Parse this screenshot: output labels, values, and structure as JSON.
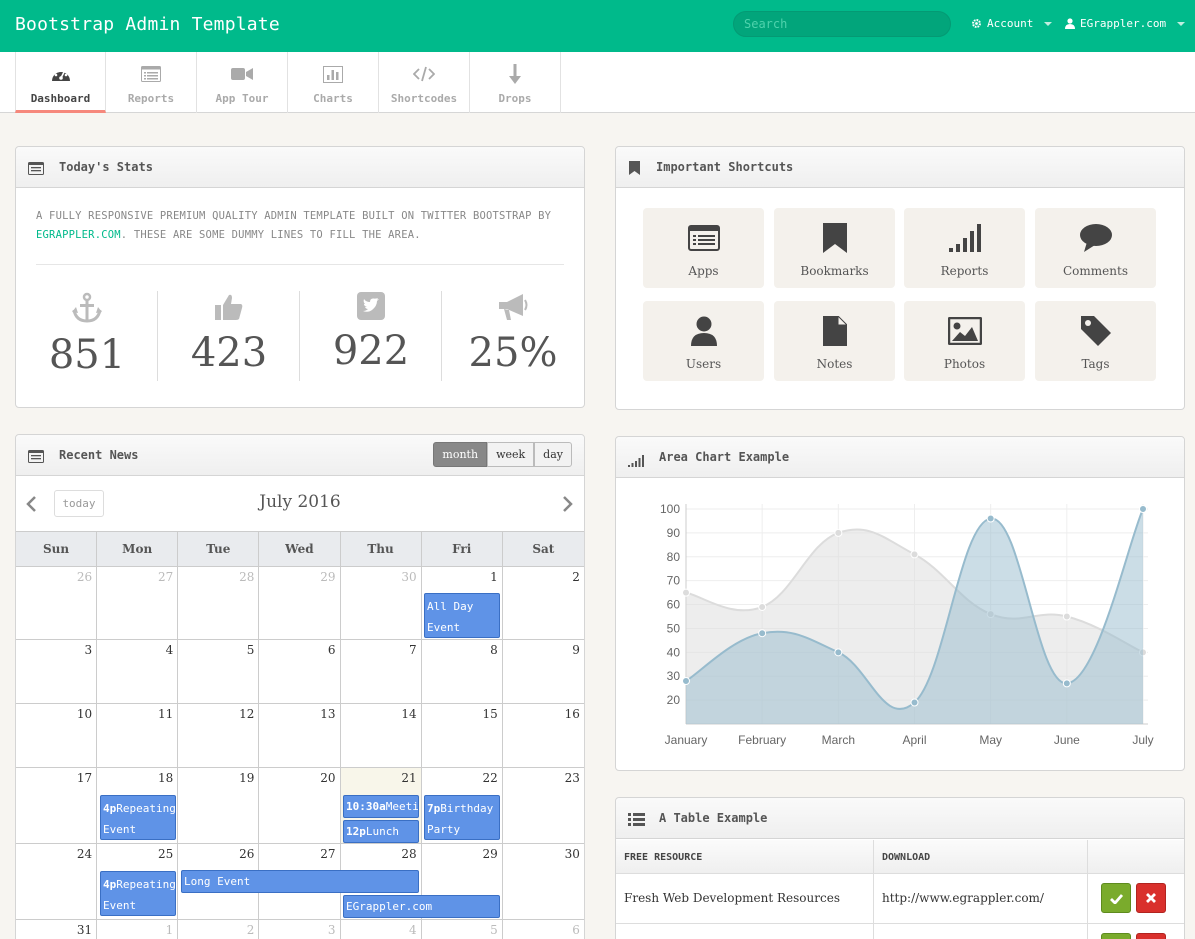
{
  "topbar": {
    "brand": "Bootstrap Admin Template",
    "search_placeholder": "Search",
    "account_label": "Account",
    "user_label": "EGrappler.com"
  },
  "tabs": [
    {
      "label": "Dashboard",
      "icon": "dashboard-icon",
      "active": true
    },
    {
      "label": "Reports",
      "icon": "list-icon"
    },
    {
      "label": "App Tour",
      "icon": "video-camera-icon"
    },
    {
      "label": "Charts",
      "icon": "bar-chart-icon"
    },
    {
      "label": "Shortcodes",
      "icon": "code-icon"
    },
    {
      "label": "Drops",
      "icon": "arrow-down-icon"
    }
  ],
  "stats": {
    "title": "Today's Stats",
    "text_before": "A fully responsive premium quality admin template built on Twitter Bootstrap by ",
    "link": "EGrappler.com",
    "text_after": ". These are some dummy lines to fill the area.",
    "items": [
      {
        "icon": "anchor-icon",
        "value": "851"
      },
      {
        "icon": "thumbs-up-icon",
        "value": "423"
      },
      {
        "icon": "twitter-icon",
        "value": "922"
      },
      {
        "icon": "bullhorn-icon",
        "value": "25%"
      }
    ]
  },
  "shortcuts": {
    "title": "Important Shortcuts",
    "items": [
      {
        "label": "Apps",
        "icon": "list-alt-icon"
      },
      {
        "label": "Bookmarks",
        "icon": "bookmark-icon"
      },
      {
        "label": "Reports",
        "icon": "signal-icon"
      },
      {
        "label": "Comments",
        "icon": "comment-icon"
      },
      {
        "label": "Users",
        "icon": "user-icon"
      },
      {
        "label": "Notes",
        "icon": "file-icon"
      },
      {
        "label": "Photos",
        "icon": "picture-icon"
      },
      {
        "label": "Tags",
        "icon": "tag-icon"
      }
    ]
  },
  "news": {
    "title": "Recent News",
    "views": [
      "month",
      "week",
      "day"
    ],
    "active_view": "month",
    "today_label": "today",
    "month_title": "July 2016",
    "weekdays": [
      "Sun",
      "Mon",
      "Tue",
      "Wed",
      "Thu",
      "Fri",
      "Sat"
    ],
    "weeks": [
      [
        "26",
        "27",
        "28",
        "29",
        "30",
        "1",
        "2"
      ],
      [
        "3",
        "4",
        "5",
        "6",
        "7",
        "8",
        "9"
      ],
      [
        "10",
        "11",
        "12",
        "13",
        "14",
        "15",
        "16"
      ],
      [
        "17",
        "18",
        "19",
        "20",
        "21",
        "22",
        "23"
      ],
      [
        "24",
        "25",
        "26",
        "27",
        "28",
        "29",
        "30"
      ],
      [
        "31",
        "1",
        "2",
        "3",
        "4",
        "5",
        "6"
      ]
    ],
    "events": {
      "all_day": "All Day Event",
      "rep1_time": "4p",
      "rep1_title": "Repeating Event",
      "meeting_time": "10:30a",
      "meeting_title": "Meeting",
      "lunch_time": "12p",
      "lunch_title": "Lunch",
      "birthday_time": "7p",
      "birthday_title": "Birthday Party",
      "rep2_time": "4p",
      "rep2_title": "Repeating Event",
      "long": "Long Event",
      "egrappler": "EGrappler.com"
    }
  },
  "area_chart": {
    "title": "Area Chart Example"
  },
  "chart_data": {
    "type": "area",
    "categories": [
      "January",
      "February",
      "March",
      "April",
      "May",
      "June",
      "July"
    ],
    "ylim": [
      10,
      100
    ],
    "yticks": [
      20,
      30,
      40,
      50,
      60,
      70,
      80,
      90,
      100
    ],
    "grid": true,
    "series": [
      {
        "values": [
          65,
          59,
          90,
          81,
          56,
          55,
          40
        ],
        "color": "#dcdcdc"
      },
      {
        "values": [
          28,
          48,
          40,
          19,
          96,
          27,
          100
        ],
        "color": "#97bbcd"
      }
    ]
  },
  "table": {
    "title": "A Table Example",
    "headers": [
      "FREE RESOURCE",
      "DOWNLOAD"
    ],
    "rows": [
      {
        "resource": "Fresh Web Development Resources",
        "download": "http://www.egrappler.com/"
      }
    ]
  },
  "colors": {
    "brand": "#00ba8b",
    "event": "#5f93e7",
    "accent_tab": "#f6887c"
  }
}
